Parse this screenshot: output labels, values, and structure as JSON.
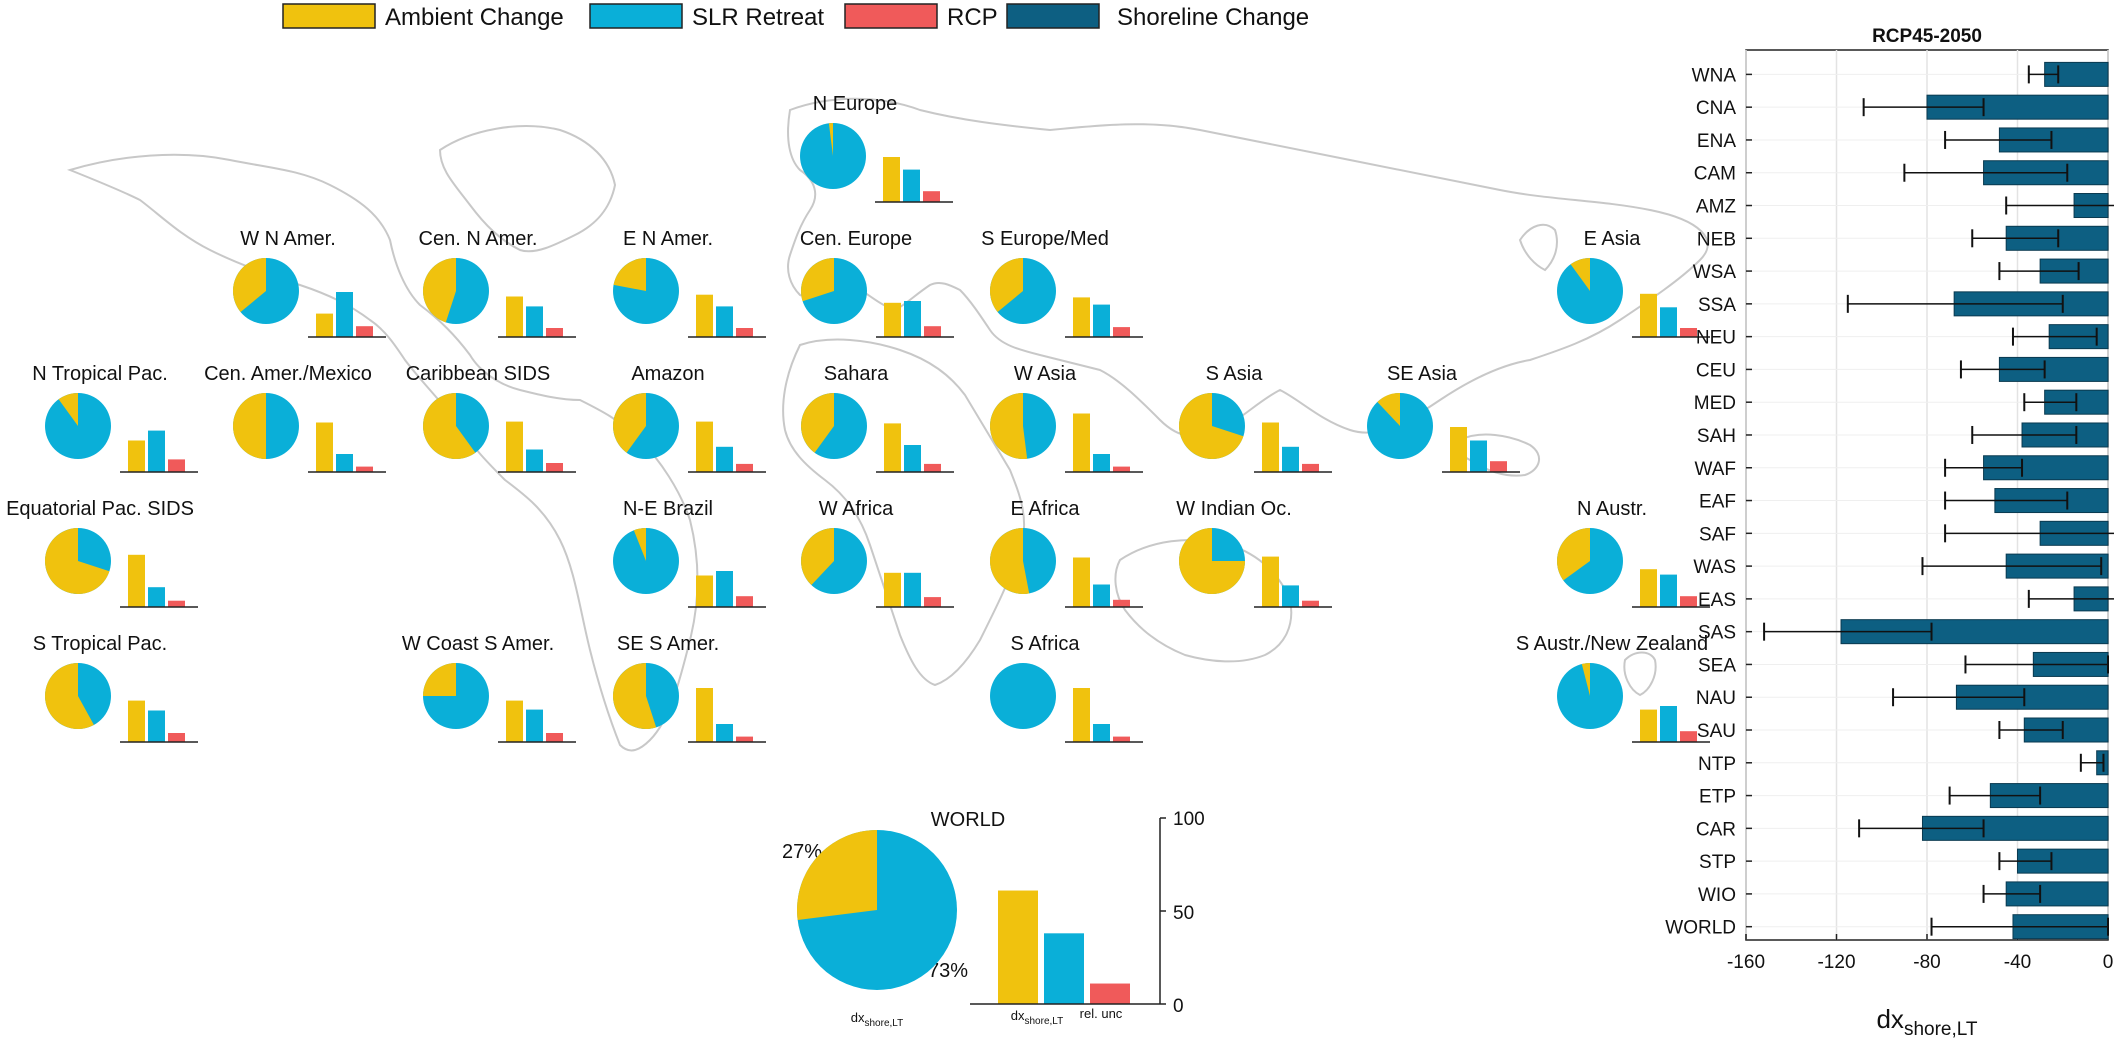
{
  "colors": {
    "ambient": "#f0c20e",
    "slr": "#0aafd8",
    "rcp": "#f05a5a",
    "shoreline": "#0d5f82",
    "land": "#c8c8c8"
  },
  "legend": {
    "items": [
      {
        "label": "Ambient Change",
        "color": "#f0c20e"
      },
      {
        "label": "SLR Retreat",
        "color": "#0aafd8"
      },
      {
        "label": "RCP",
        "color": "#f05a5a"
      },
      {
        "label": "Shoreline Change",
        "color": "#0d5f82"
      }
    ]
  },
  "world": {
    "title": "WORLD",
    "pct_ambient": "27%",
    "pct_slr": "73%",
    "pie_label_main": "dx",
    "pie_label_sub": "shore,LT",
    "bar_label_main": "dx",
    "bar_label_sub": "shore,LT",
    "bar_label_extra": "rel. unc",
    "y_ticks": [
      "100",
      "50",
      "0"
    ]
  },
  "chart_data": [
    {
      "type": "pie",
      "description_scope": "regional decomposition",
      "regions": [
        {
          "name": "N Europe",
          "ambient_pct": 2,
          "bars": [
            50,
            36,
            12
          ]
        },
        {
          "name": "W N Amer.",
          "ambient_pct": 36,
          "bars": [
            26,
            50,
            12
          ]
        },
        {
          "name": "Cen. N Amer.",
          "ambient_pct": 45,
          "bars": [
            45,
            34,
            10
          ]
        },
        {
          "name": "E N Amer.",
          "ambient_pct": 22,
          "bars": [
            47,
            34,
            10
          ]
        },
        {
          "name": "Cen. Europe",
          "ambient_pct": 30,
          "bars": [
            38,
            40,
            12
          ]
        },
        {
          "name": "S Europe/Med",
          "ambient_pct": 36,
          "bars": [
            44,
            36,
            11
          ]
        },
        {
          "name": "E Asia",
          "ambient_pct": 10,
          "bars": [
            48,
            33,
            10
          ]
        },
        {
          "name": "N Tropical Pac.",
          "ambient_pct": 10,
          "bars": [
            35,
            46,
            14
          ]
        },
        {
          "name": "Cen. Amer./Mexico",
          "ambient_pct": 50,
          "bars": [
            55,
            20,
            6
          ]
        },
        {
          "name": "Caribbean SIDS",
          "ambient_pct": 60,
          "bars": [
            56,
            25,
            10
          ]
        },
        {
          "name": "Amazon",
          "ambient_pct": 40,
          "bars": [
            56,
            28,
            9
          ]
        },
        {
          "name": "Sahara",
          "ambient_pct": 40,
          "bars": [
            54,
            30,
            9
          ]
        },
        {
          "name": "W Asia",
          "ambient_pct": 52,
          "bars": [
            65,
            20,
            6
          ]
        },
        {
          "name": "S Asia",
          "ambient_pct": 70,
          "bars": [
            55,
            28,
            9
          ]
        },
        {
          "name": "SE Asia",
          "ambient_pct": 12,
          "bars": [
            50,
            35,
            12
          ]
        },
        {
          "name": "Equatorial Pac. SIDS",
          "ambient_pct": 70,
          "bars": [
            58,
            22,
            7
          ]
        },
        {
          "name": "N-E Brazil",
          "ambient_pct": 6,
          "bars": [
            35,
            40,
            12
          ]
        },
        {
          "name": "W Africa",
          "ambient_pct": 38,
          "bars": [
            38,
            38,
            11
          ]
        },
        {
          "name": "E Africa",
          "ambient_pct": 53,
          "bars": [
            55,
            25,
            8
          ]
        },
        {
          "name": "W Indian Oc.",
          "ambient_pct": 75,
          "bars": [
            56,
            24,
            7
          ]
        },
        {
          "name": "N Austr.",
          "ambient_pct": 35,
          "bars": [
            42,
            36,
            12
          ]
        },
        {
          "name": "S Tropical Pac.",
          "ambient_pct": 58,
          "bars": [
            46,
            35,
            10
          ]
        },
        {
          "name": "W Coast S Amer.",
          "ambient_pct": 25,
          "bars": [
            46,
            36,
            10
          ]
        },
        {
          "name": "SE S Amer.",
          "ambient_pct": 55,
          "bars": [
            60,
            20,
            6
          ]
        },
        {
          "name": "S Africa",
          "ambient_pct": 0,
          "bars": [
            60,
            20,
            6
          ]
        },
        {
          "name": "S Austr./New Zealand",
          "ambient_pct": 4,
          "bars": [
            36,
            40,
            12
          ]
        }
      ],
      "world": {
        "ambient_pct": 27,
        "slr_pct": 73,
        "bars": [
          61,
          38,
          11
        ],
        "ylim": [
          0,
          100
        ]
      }
    },
    {
      "type": "bar",
      "title": "RCP45-2050",
      "xlabel_main": "dx",
      "xlabel_sub": "shore,LT",
      "xlim": [
        -160,
        0
      ],
      "xticks": [
        -160,
        -120,
        -80,
        -40,
        0
      ],
      "orientation": "horizontal",
      "categories": [
        "WNA",
        "CNA",
        "ENA",
        "CAM",
        "AMZ",
        "NEB",
        "WSA",
        "SSA",
        "NEU",
        "CEU",
        "MED",
        "SAH",
        "WAF",
        "EAF",
        "SAF",
        "WAS",
        "EAS",
        "SAS",
        "SEA",
        "NAU",
        "SAU",
        "NTP",
        "ETP",
        "CAR",
        "STP",
        "WIO",
        "WORLD"
      ],
      "values": [
        -28,
        -80,
        -48,
        -55,
        -15,
        -45,
        -30,
        -68,
        -26,
        -48,
        -28,
        -38,
        -55,
        -50,
        -30,
        -45,
        -15,
        -118,
        -33,
        -67,
        -37,
        -5,
        -52,
        -82,
        -40,
        -45,
        -42
      ],
      "err_low": [
        -35,
        -108,
        -72,
        -90,
        -45,
        -60,
        -48,
        -115,
        -42,
        -65,
        -37,
        -60,
        -72,
        -72,
        -72,
        -82,
        -35,
        -152,
        -63,
        -95,
        -48,
        -12,
        -70,
        -110,
        -48,
        -55,
        -78
      ],
      "err_high": [
        -22,
        -55,
        -25,
        -18,
        22,
        -22,
        -13,
        -20,
        -5,
        -28,
        -14,
        -14,
        -38,
        -18,
        15,
        -3,
        8,
        -78,
        0,
        -37,
        -20,
        -2,
        -30,
        -55,
        -25,
        -30,
        0
      ]
    }
  ]
}
